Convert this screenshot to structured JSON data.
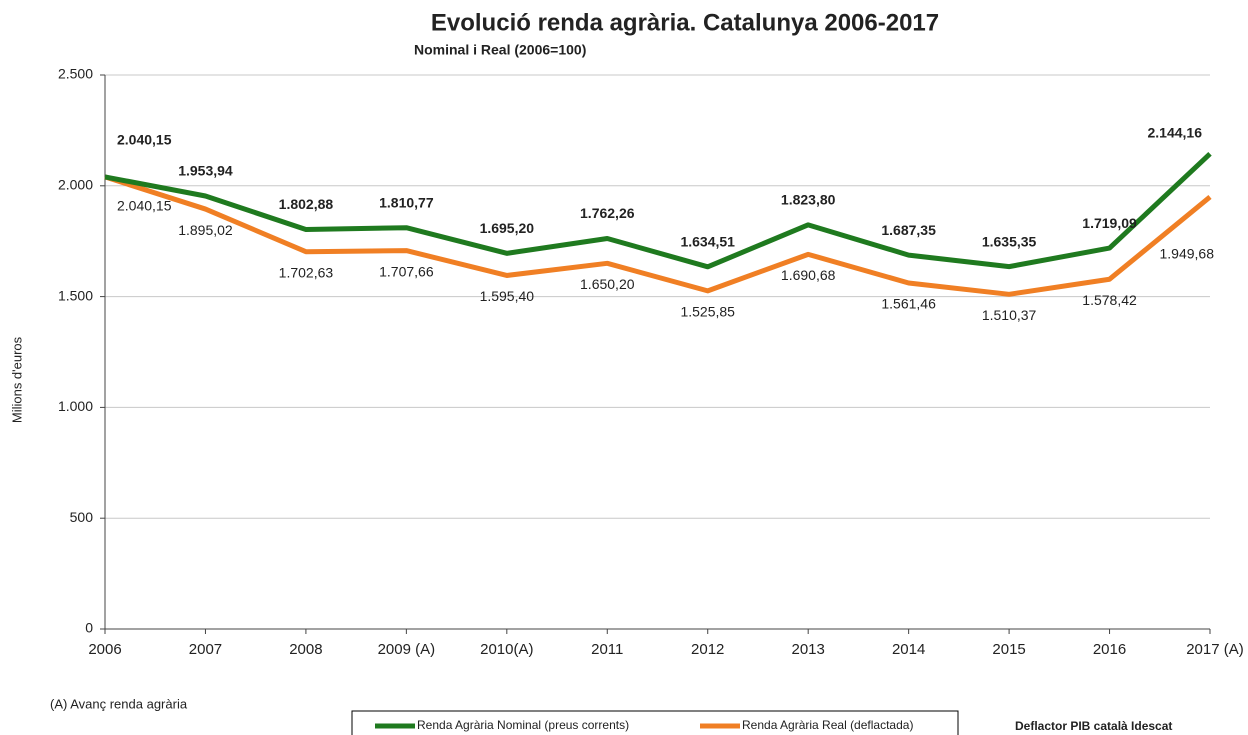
{
  "chart_data": {
    "type": "line",
    "title": "Evolució renda agrària. Catalunya 2006-2017",
    "subtitle": "Nominal i Real (2006=100)",
    "y_label": "Milions d'euros",
    "categories": [
      "2006",
      "2007",
      "2008",
      "2009 (A)",
      "2010(A)",
      "2011",
      "2012",
      "2013",
      "2014",
      "2015",
      "2016",
      "2017 (A)"
    ],
    "series": [
      {
        "name": "Renda Agrària Nominal (preus corrents)",
        "color": "#1f7a1f",
        "values": [
          2040.15,
          1953.94,
          1802.88,
          1810.77,
          1695.2,
          1762.26,
          1634.51,
          1823.8,
          1687.35,
          1635.35,
          1719.09,
          2144.16
        ],
        "value_labels": [
          "2.040,15",
          "1.953,94",
          "1.802,88",
          "1.810,77",
          "1.695,20",
          "1.762,26",
          "1.634,51",
          "1.823,80",
          "1.687,35",
          "1.635,35",
          "1.719,09",
          "2.144,16"
        ]
      },
      {
        "name": "Renda Agrària Real (deflactada)",
        "color": "#f07f24",
        "values": [
          2040.15,
          1895.02,
          1702.63,
          1707.66,
          1595.4,
          1650.2,
          1525.85,
          1690.68,
          1561.46,
          1510.37,
          1578.42,
          1949.68
        ],
        "value_labels": [
          "2.040,15",
          "1.895,02",
          "1.702,63",
          "1.707,66",
          "1.595,40",
          "1.650,20",
          "1.525,85",
          "1.690,68",
          "1.561,46",
          "1.510,37",
          "1.578,42",
          "1.949,68"
        ]
      }
    ],
    "ylim": [
      0,
      2500
    ],
    "yticks": [
      0,
      500,
      {
        "value": 1000,
        "label": "1.000"
      },
      {
        "value": 1500,
        "label": "1.500"
      },
      {
        "value": 2000,
        "label": "2.000"
      },
      {
        "value": 2500,
        "label": "2.500"
      }
    ],
    "grid": true,
    "annotations": [
      "(A) Avanç  renda  agrària",
      "Deflactor PIB  català Idescat"
    ]
  }
}
